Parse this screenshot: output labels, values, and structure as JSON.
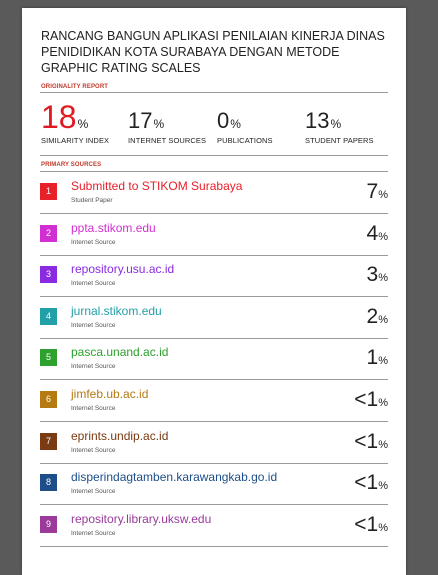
{
  "report": {
    "title": "RANCANG BANGUN APLIKASI PENILAIAN KINERJA DINAS PENIDIDIKAN KOTA SURABAYA DENGAN METODE GRAPHIC RATING SCALES",
    "originality_label": "ORIGINALITY REPORT",
    "primary_sources_label": "PRIMARY SOURCES"
  },
  "stats": {
    "similarity": {
      "value": "18",
      "unit": "%",
      "label": "SIMILARITY INDEX"
    },
    "internet": {
      "value": "17",
      "unit": "%",
      "label": "INTERNET SOURCES"
    },
    "publications": {
      "value": "0",
      "unit": "%",
      "label": "PUBLICATIONS"
    },
    "student": {
      "value": "13",
      "unit": "%",
      "label": "STUDENT PAPERS"
    }
  },
  "sources": [
    {
      "rank": "1",
      "name": "Submitted to STIKOM Surabaya",
      "type": "Student Paper",
      "value": "7",
      "unit": "%",
      "color": "#e8202a"
    },
    {
      "rank": "2",
      "name": "ppta.stikom.edu",
      "type": "Internet Source",
      "value": "4",
      "unit": "%",
      "color": "#d22fd2"
    },
    {
      "rank": "3",
      "name": "repository.usu.ac.id",
      "type": "Internet Source",
      "value": "3",
      "unit": "%",
      "color": "#8a2be2"
    },
    {
      "rank": "4",
      "name": "jurnal.stikom.edu",
      "type": "Internet Source",
      "value": "2",
      "unit": "%",
      "color": "#21a0a8"
    },
    {
      "rank": "5",
      "name": "pasca.unand.ac.id",
      "type": "Internet Source",
      "value": "1",
      "unit": "%",
      "color": "#2ea02e"
    },
    {
      "rank": "6",
      "name": "jimfeb.ub.ac.id",
      "type": "Internet Source",
      "value": "<1",
      "unit": "%",
      "color": "#b57a12"
    },
    {
      "rank": "7",
      "name": "eprints.undip.ac.id",
      "type": "Internet Source",
      "value": "<1",
      "unit": "%",
      "color": "#7a3a12"
    },
    {
      "rank": "8",
      "name": "disperindagtamben.karawangkab.go.id",
      "type": "Internet Source",
      "value": "<1",
      "unit": "%",
      "color": "#1d4e89"
    },
    {
      "rank": "9",
      "name": "repository.library.uksw.edu",
      "type": "Internet Source",
      "value": "<1",
      "unit": "%",
      "color": "#9b3a9b"
    }
  ]
}
